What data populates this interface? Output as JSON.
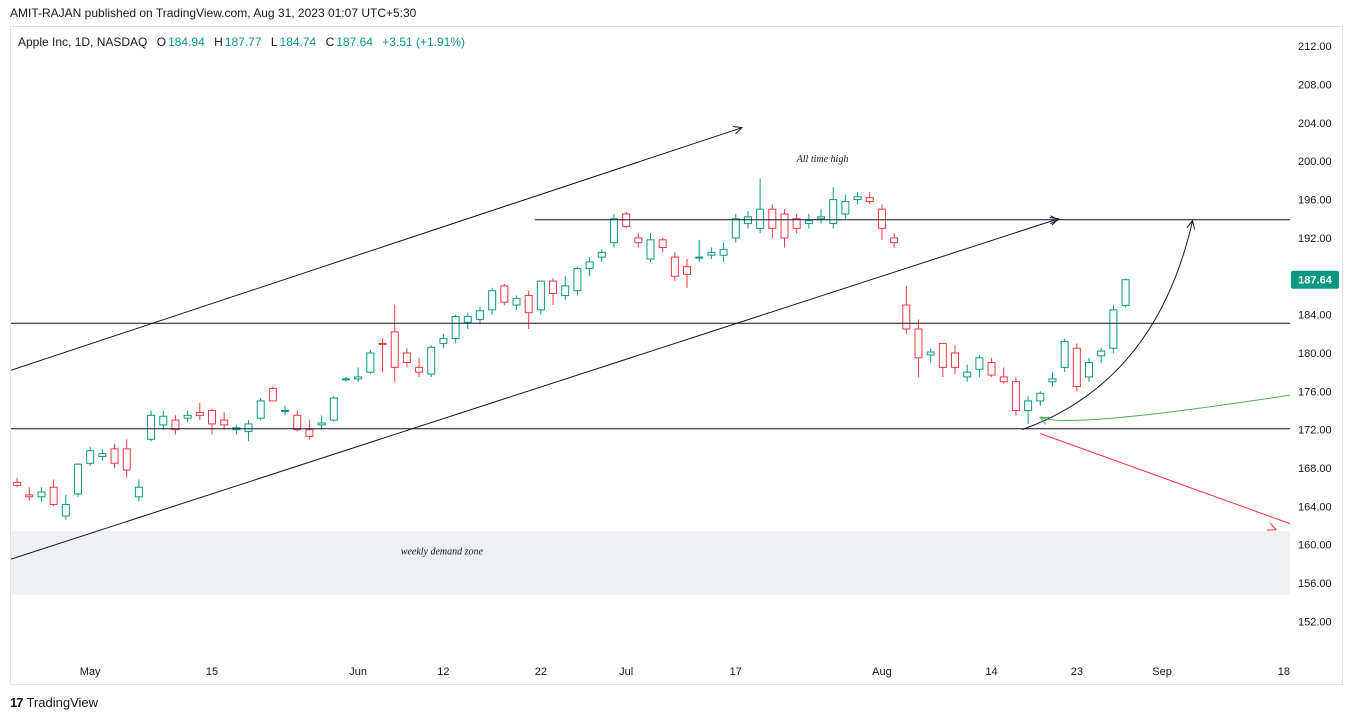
{
  "header": {
    "publisher_line": "AMIT-RAJAN published on TradingView.com, Aug 31, 2023 01:07 UTC+5:30"
  },
  "legend": {
    "symbol": "Apple Inc, 1D, NASDAQ",
    "open_label": "O",
    "open": "184.94",
    "high_label": "H",
    "high": "187.77",
    "low_label": "L",
    "low": "184.74",
    "close_label": "C",
    "close": "187.64",
    "change": "+3.51 (+1.91%)"
  },
  "footer": {
    "brand": "TradingView",
    "logo_glyph": "17"
  },
  "colors": {
    "up": "#089981",
    "down": "#f23645",
    "line": "#131722",
    "zone": "#eef0f4",
    "green_curve": "#4caf50",
    "red_line": "#f23645"
  },
  "chart_data": {
    "type": "candlestick",
    "y_ticks": [
      "212.00",
      "208.00",
      "204.00",
      "200.00",
      "196.00",
      "192.00",
      "188.00",
      "184.00",
      "180.00",
      "176.00",
      "172.00",
      "168.00",
      "164.00",
      "160.00",
      "156.00",
      "152.00"
    ],
    "ylim": [
      148.5,
      214.0
    ],
    "x_ticks": [
      {
        "label": "May",
        "index": 6
      },
      {
        "label": "15",
        "index": 16
      },
      {
        "label": "Jun",
        "index": 28
      },
      {
        "label": "12",
        "index": 35
      },
      {
        "label": "22",
        "index": 43
      },
      {
        "label": "Jul",
        "index": 50
      },
      {
        "label": "17",
        "index": 59
      },
      {
        "label": "Aug",
        "index": 71
      },
      {
        "label": "14",
        "index": 80
      },
      {
        "label": "23",
        "index": 87
      },
      {
        "label": "Sep",
        "index": 94
      },
      {
        "label": "18",
        "index": 104
      }
    ],
    "x_range": [
      -0.5,
      104.5
    ],
    "last_price_label": "187.64",
    "candles": [
      {
        "o": 166.5,
        "h": 167.0,
        "l": 166.0,
        "c": 166.2
      },
      {
        "o": 165.2,
        "h": 166.0,
        "l": 164.6,
        "c": 165.0
      },
      {
        "o": 165.0,
        "h": 166.0,
        "l": 164.5,
        "c": 165.5
      },
      {
        "o": 166.0,
        "h": 166.8,
        "l": 164.0,
        "c": 164.2
      },
      {
        "o": 163.0,
        "h": 165.2,
        "l": 162.6,
        "c": 164.2
      },
      {
        "o": 165.3,
        "h": 168.5,
        "l": 165.0,
        "c": 168.4
      },
      {
        "o": 168.5,
        "h": 170.2,
        "l": 168.2,
        "c": 169.8
      },
      {
        "o": 169.2,
        "h": 170.0,
        "l": 168.8,
        "c": 169.5
      },
      {
        "o": 170.0,
        "h": 170.5,
        "l": 168.0,
        "c": 168.5
      },
      {
        "o": 170.0,
        "h": 171.0,
        "l": 167.0,
        "c": 167.8
      },
      {
        "o": 165.0,
        "h": 166.8,
        "l": 164.5,
        "c": 166.0
      },
      {
        "o": 171.0,
        "h": 174.0,
        "l": 170.8,
        "c": 173.5
      },
      {
        "o": 172.5,
        "h": 174.0,
        "l": 172.0,
        "c": 173.4
      },
      {
        "o": 173.0,
        "h": 173.5,
        "l": 171.5,
        "c": 172.0
      },
      {
        "o": 173.2,
        "h": 174.0,
        "l": 172.8,
        "c": 173.5
      },
      {
        "o": 173.8,
        "h": 174.8,
        "l": 173.0,
        "c": 173.5
      },
      {
        "o": 174.0,
        "h": 174.2,
        "l": 171.5,
        "c": 172.6
      },
      {
        "o": 173.0,
        "h": 173.8,
        "l": 172.0,
        "c": 172.5
      },
      {
        "o": 172.0,
        "h": 172.5,
        "l": 171.5,
        "c": 172.2
      },
      {
        "o": 171.8,
        "h": 173.0,
        "l": 170.8,
        "c": 172.6
      },
      {
        "o": 173.2,
        "h": 175.3,
        "l": 173.0,
        "c": 175.0
      },
      {
        "o": 176.3,
        "h": 176.5,
        "l": 175.0,
        "c": 175.0
      },
      {
        "o": 174.0,
        "h": 174.5,
        "l": 173.5,
        "c": 174.0
      },
      {
        "o": 173.5,
        "h": 174.0,
        "l": 171.8,
        "c": 172.0
      },
      {
        "o": 172.0,
        "h": 173.0,
        "l": 171.0,
        "c": 171.3
      },
      {
        "o": 172.5,
        "h": 173.5,
        "l": 172.0,
        "c": 172.7
      },
      {
        "o": 173.0,
        "h": 175.5,
        "l": 172.8,
        "c": 175.3
      },
      {
        "o": 177.2,
        "h": 177.5,
        "l": 177.0,
        "c": 177.3
      },
      {
        "o": 177.3,
        "h": 178.5,
        "l": 177.0,
        "c": 177.5
      },
      {
        "o": 178.0,
        "h": 180.3,
        "l": 177.8,
        "c": 180.0
      },
      {
        "o": 181.0,
        "h": 181.5,
        "l": 178.0,
        "c": 180.9
      },
      {
        "o": 182.2,
        "h": 185.0,
        "l": 177.0,
        "c": 178.5
      },
      {
        "o": 180.0,
        "h": 180.5,
        "l": 178.5,
        "c": 179.0
      },
      {
        "o": 178.5,
        "h": 179.5,
        "l": 177.5,
        "c": 178.0
      },
      {
        "o": 177.8,
        "h": 180.8,
        "l": 177.5,
        "c": 180.6
      },
      {
        "o": 181.0,
        "h": 182.0,
        "l": 180.5,
        "c": 181.5
      },
      {
        "o": 181.5,
        "h": 184.0,
        "l": 181.0,
        "c": 183.8
      },
      {
        "o": 183.2,
        "h": 184.2,
        "l": 182.5,
        "c": 183.8
      },
      {
        "o": 183.5,
        "h": 184.8,
        "l": 183.0,
        "c": 184.4
      },
      {
        "o": 184.5,
        "h": 186.8,
        "l": 184.0,
        "c": 186.5
      },
      {
        "o": 187.0,
        "h": 187.2,
        "l": 185.0,
        "c": 185.3
      },
      {
        "o": 185.0,
        "h": 186.0,
        "l": 184.5,
        "c": 185.7
      },
      {
        "o": 186.0,
        "h": 186.5,
        "l": 182.5,
        "c": 184.2
      },
      {
        "o": 184.5,
        "h": 187.5,
        "l": 184.0,
        "c": 187.5
      },
      {
        "o": 187.5,
        "h": 187.8,
        "l": 185.0,
        "c": 186.2
      },
      {
        "o": 186.0,
        "h": 188.0,
        "l": 185.5,
        "c": 187.0
      },
      {
        "o": 186.5,
        "h": 189.0,
        "l": 186.0,
        "c": 188.8
      },
      {
        "o": 188.8,
        "h": 190.0,
        "l": 188.0,
        "c": 189.5
      },
      {
        "o": 190.0,
        "h": 190.8,
        "l": 189.5,
        "c": 190.5
      },
      {
        "o": 191.5,
        "h": 194.5,
        "l": 191.0,
        "c": 194.0
      },
      {
        "o": 194.5,
        "h": 194.7,
        "l": 193.0,
        "c": 193.2
      },
      {
        "o": 192.0,
        "h": 192.5,
        "l": 191.0,
        "c": 191.5
      },
      {
        "o": 189.8,
        "h": 192.5,
        "l": 189.5,
        "c": 191.8
      },
      {
        "o": 191.8,
        "h": 192.0,
        "l": 190.5,
        "c": 191.0
      },
      {
        "o": 190.0,
        "h": 190.5,
        "l": 187.5,
        "c": 188.0
      },
      {
        "o": 189.0,
        "h": 189.8,
        "l": 186.8,
        "c": 188.2
      },
      {
        "o": 190.0,
        "h": 191.8,
        "l": 189.5,
        "c": 190.0
      },
      {
        "o": 190.2,
        "h": 191.0,
        "l": 189.8,
        "c": 190.5
      },
      {
        "o": 190.2,
        "h": 191.5,
        "l": 189.5,
        "c": 190.8
      },
      {
        "o": 192.0,
        "h": 194.5,
        "l": 191.5,
        "c": 194.0
      },
      {
        "o": 193.5,
        "h": 194.8,
        "l": 193.0,
        "c": 194.2
      },
      {
        "o": 193.0,
        "h": 198.2,
        "l": 192.5,
        "c": 195.0
      },
      {
        "o": 195.0,
        "h": 195.5,
        "l": 192.0,
        "c": 193.0
      },
      {
        "o": 194.5,
        "h": 195.0,
        "l": 191.0,
        "c": 192.0
      },
      {
        "o": 194.0,
        "h": 194.5,
        "l": 192.5,
        "c": 193.0
      },
      {
        "o": 193.5,
        "h": 194.5,
        "l": 193.0,
        "c": 193.8
      },
      {
        "o": 194.0,
        "h": 195.0,
        "l": 193.5,
        "c": 194.2
      },
      {
        "o": 193.5,
        "h": 197.3,
        "l": 193.0,
        "c": 196.0
      },
      {
        "o": 194.5,
        "h": 196.5,
        "l": 194.0,
        "c": 195.8
      },
      {
        "o": 196.0,
        "h": 196.8,
        "l": 195.5,
        "c": 196.3
      },
      {
        "o": 196.2,
        "h": 196.8,
        "l": 195.5,
        "c": 195.8
      },
      {
        "o": 195.0,
        "h": 195.5,
        "l": 191.8,
        "c": 193.0
      },
      {
        "o": 192.0,
        "h": 192.5,
        "l": 191.0,
        "c": 191.5
      },
      {
        "o": 185.0,
        "h": 187.0,
        "l": 182.0,
        "c": 182.5
      },
      {
        "o": 182.5,
        "h": 183.5,
        "l": 177.5,
        "c": 179.5
      },
      {
        "o": 179.8,
        "h": 180.5,
        "l": 179.0,
        "c": 180.1
      },
      {
        "o": 181.0,
        "h": 181.0,
        "l": 177.5,
        "c": 178.5
      },
      {
        "o": 180.0,
        "h": 180.8,
        "l": 177.8,
        "c": 178.5
      },
      {
        "o": 177.5,
        "h": 178.8,
        "l": 177.0,
        "c": 178.0
      },
      {
        "o": 178.3,
        "h": 179.8,
        "l": 177.5,
        "c": 179.5
      },
      {
        "o": 179.0,
        "h": 179.5,
        "l": 177.5,
        "c": 177.7
      },
      {
        "o": 177.5,
        "h": 178.5,
        "l": 176.8,
        "c": 177.0
      },
      {
        "o": 177.0,
        "h": 177.5,
        "l": 173.5,
        "c": 174.0
      },
      {
        "o": 174.0,
        "h": 175.5,
        "l": 172.6,
        "c": 175.0
      },
      {
        "o": 175.0,
        "h": 176.0,
        "l": 174.5,
        "c": 175.8
      },
      {
        "o": 177.0,
        "h": 178.0,
        "l": 176.5,
        "c": 177.3
      },
      {
        "o": 178.5,
        "h": 181.5,
        "l": 178.0,
        "c": 181.2
      },
      {
        "o": 180.5,
        "h": 181.0,
        "l": 176.0,
        "c": 176.5
      },
      {
        "o": 177.5,
        "h": 179.5,
        "l": 177.0,
        "c": 179.0
      },
      {
        "o": 179.7,
        "h": 180.5,
        "l": 179.0,
        "c": 180.2
      },
      {
        "o": 180.5,
        "h": 185.0,
        "l": 180.0,
        "c": 184.5
      },
      {
        "o": 184.94,
        "h": 187.77,
        "l": 184.74,
        "c": 187.64
      }
    ],
    "drawings": {
      "horizontal_lines": [
        {
          "name": "ath-level",
          "price": 193.9,
          "from": 42.5,
          "to": 110
        },
        {
          "name": "resistance-184",
          "price": 183.1,
          "from": -0.5,
          "to": 110
        },
        {
          "name": "support-172",
          "price": 172.1,
          "from": -0.5,
          "to": 110
        }
      ],
      "ath_arrow": {
        "x": 85.5,
        "price": 193.9
      },
      "channel_upper": {
        "x1": -0.5,
        "p1": 178.2,
        "x2": 59.5,
        "p2": 203.5
      },
      "channel_lower": {
        "x1": -0.5,
        "p1": 158.5,
        "x2": 85.5,
        "p2": 194.0
      },
      "demand_zone": {
        "price_top": 161.4,
        "price_bottom": 154.8
      },
      "curve_up": {
        "x1": 82.5,
        "p1": 172.0,
        "cx": 93.5,
        "cp": 177.0,
        "x2": 96.5,
        "p2": 193.8
      },
      "curve_green": {
        "x1": 84.0,
        "p1": 173.3,
        "cx": 86.0,
        "cp": 172.0,
        "x2": 104.5,
        "p2": 175.6
      },
      "red_line": {
        "x1": 84.0,
        "p1": 171.6,
        "x2": 104.5,
        "p2": 162.2
      },
      "annotations": [
        {
          "name": "ath-annotation",
          "text": "All time high",
          "x": 64.0,
          "price": 199.9
        },
        {
          "name": "demand-zone-annotation",
          "text": "weekly demand zone",
          "x": 31.5,
          "price": 159.0
        }
      ]
    }
  }
}
